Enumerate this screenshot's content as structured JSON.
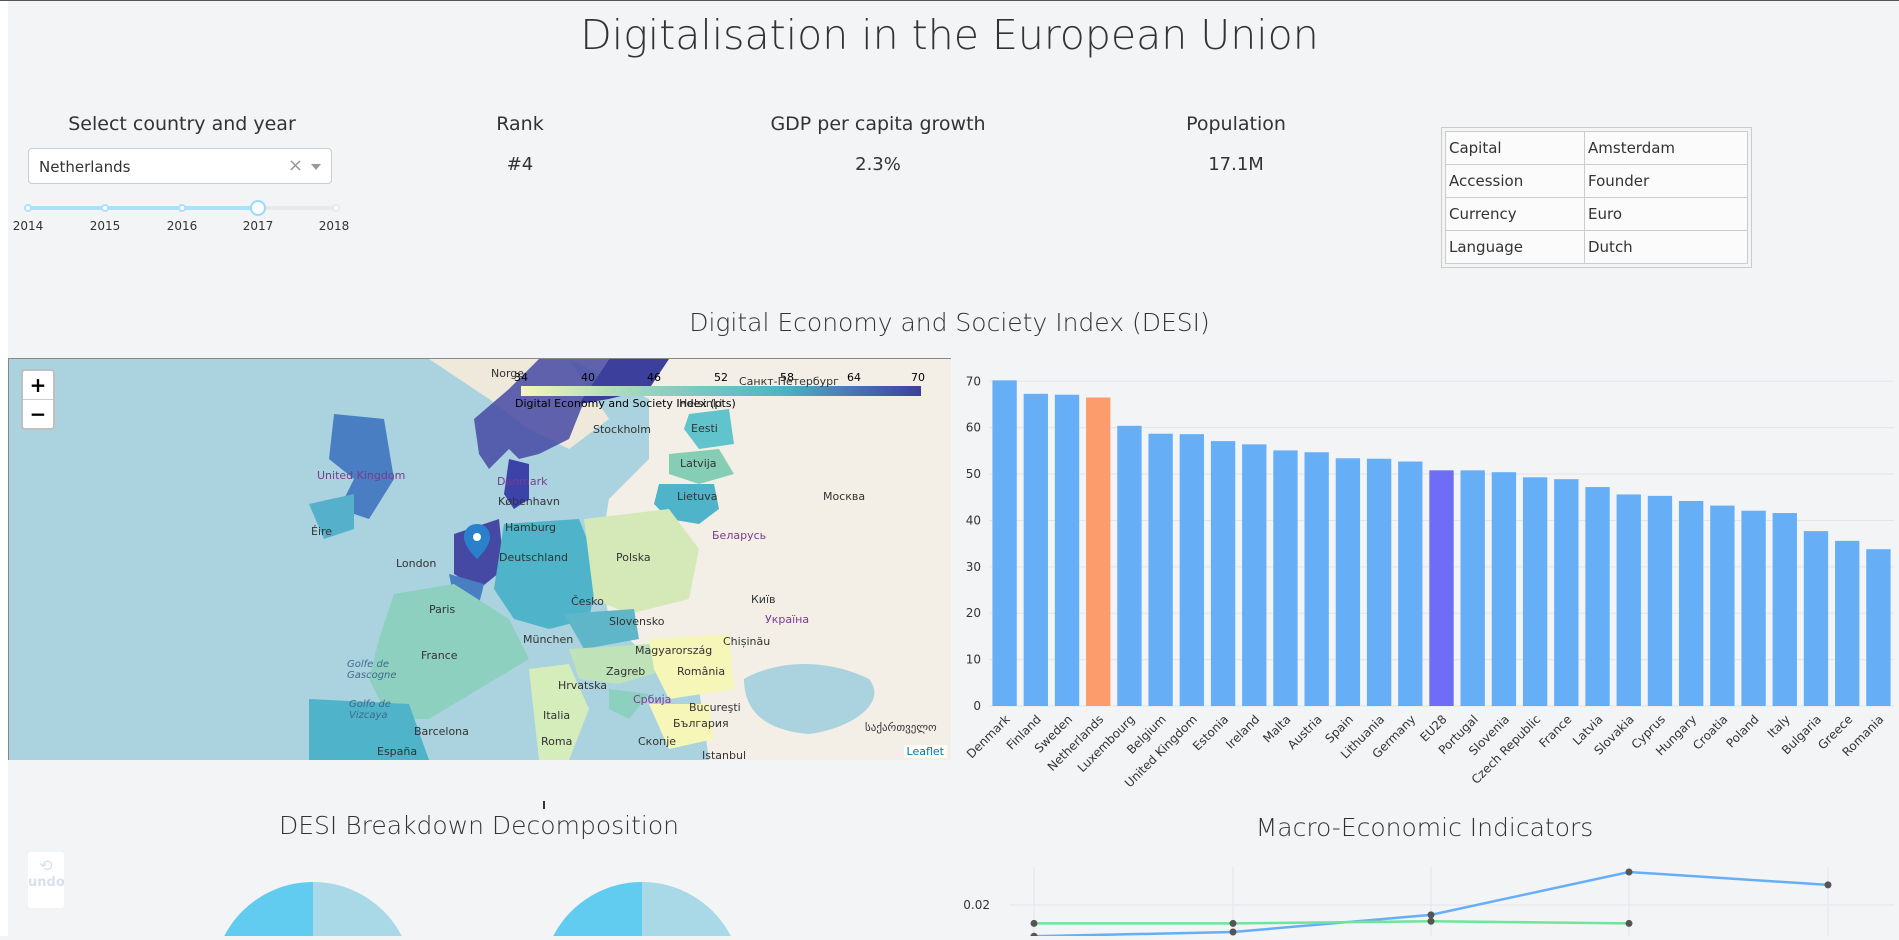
{
  "page": {
    "title": "Digitalisation in the European Union"
  },
  "selector": {
    "label": "Select country and year",
    "country": "Netherlands",
    "years": [
      "2014",
      "2015",
      "2016",
      "2017",
      "2018"
    ],
    "selected_year": "2017"
  },
  "kpis": {
    "rank_label": "Rank",
    "rank_value": "#4",
    "gdp_label": "GDP per capita growth",
    "gdp_value": "2.3%",
    "pop_label": "Population",
    "pop_value": "17.1M"
  },
  "info": {
    "rows": [
      {
        "key": "Capital",
        "value": "Amsterdam"
      },
      {
        "key": "Accession",
        "value": "Founder"
      },
      {
        "key": "Currency",
        "value": "Euro"
      },
      {
        "key": "Language",
        "value": "Dutch"
      }
    ]
  },
  "desi_section": {
    "title": "Digital Economy and Society Index (DESI)"
  },
  "map": {
    "zoom_in": "+",
    "zoom_out": "−",
    "legend_title": "Digital Economy and Society Index (pts)",
    "legend_ticks": [
      "34",
      "40",
      "46",
      "52",
      "58",
      "64",
      "70"
    ],
    "attribution": "Leaflet",
    "place_labels": [
      "Stockholm",
      "United Kingdom",
      "Danmark",
      "København",
      "Hamburg",
      "Deutschland",
      "Polska",
      "London",
      "Paris",
      "France",
      "Česko",
      "München",
      "Magyarország",
      "Zagreb",
      "România",
      "Italia",
      "Србија",
      "Barcelona",
      "España",
      "Roma",
      "Скопје",
      "Istanbul",
      "Беларусь",
      "Україна",
      "Москва",
      "Київ",
      "Chișinău",
      "Lietuva",
      "Latvija",
      "Eesti",
      "Éire",
      "Hrvatska",
      "Bucureşti",
      "България",
      "საქართველო",
      "Санкт-Петербург",
      "Helsinki",
      "Golfe de Gascogne",
      "Golfo de Vizcaya",
      "Norge",
      "Slovensko"
    ]
  },
  "chart_data": [
    {
      "type": "bar",
      "title": "",
      "xlabel": "",
      "ylabel": "",
      "ylim": [
        0,
        72
      ],
      "yticks": [
        "0",
        "10",
        "20",
        "30",
        "40",
        "50",
        "60",
        "70"
      ],
      "categories": [
        "Denmark",
        "Finland",
        "Sweden",
        "Netherlands",
        "Luxembourg",
        "Belgium",
        "United Kingdom",
        "Estonia",
        "Ireland",
        "Malta",
        "Austria",
        "Spain",
        "Lithuania",
        "Germany",
        "EU28",
        "Portugal",
        "Slovenia",
        "Czech Republic",
        "France",
        "Latvia",
        "Slovakia",
        "Cyprus",
        "Hungary",
        "Croatia",
        "Poland",
        "Italy",
        "Bulgaria",
        "Greece",
        "Romania"
      ],
      "values": [
        70.2,
        67.3,
        67.1,
        66.5,
        60.4,
        58.7,
        58.6,
        57.1,
        56.4,
        55.1,
        54.7,
        53.4,
        53.3,
        52.7,
        50.8,
        50.8,
        50.4,
        49.3,
        48.9,
        47.2,
        45.6,
        45.3,
        44.2,
        43.2,
        42.1,
        41.6,
        37.7,
        35.6,
        33.8
      ],
      "colors": {
        "default": "#66aff7",
        "selected": "#fc9c6c",
        "eu": "#6d6df5"
      },
      "highlight": {
        "Netherlands": "selected",
        "EU28": "eu"
      },
      "grid": true
    },
    {
      "type": "pie",
      "title": "DESI Breakdown Decomposition",
      "colors": [
        "#61ccef",
        "#a9d8e6"
      ]
    },
    {
      "type": "line",
      "title": "Macro-Economic Indicators",
      "ytick_visible": "0.02",
      "series": [
        {
          "color": "#66aff7",
          "values": [
            0.012,
            0.013,
            0.017,
            0.027,
            0.024
          ]
        },
        {
          "color": "#6ee59a",
          "values": [
            0.015,
            0.015,
            0.0155,
            0.015
          ]
        }
      ]
    }
  ],
  "breakdown": {
    "title": "DESI Breakdown Decomposition"
  },
  "macro": {
    "title": "Macro-Economic Indicators"
  },
  "undo": {
    "label": "undo"
  }
}
